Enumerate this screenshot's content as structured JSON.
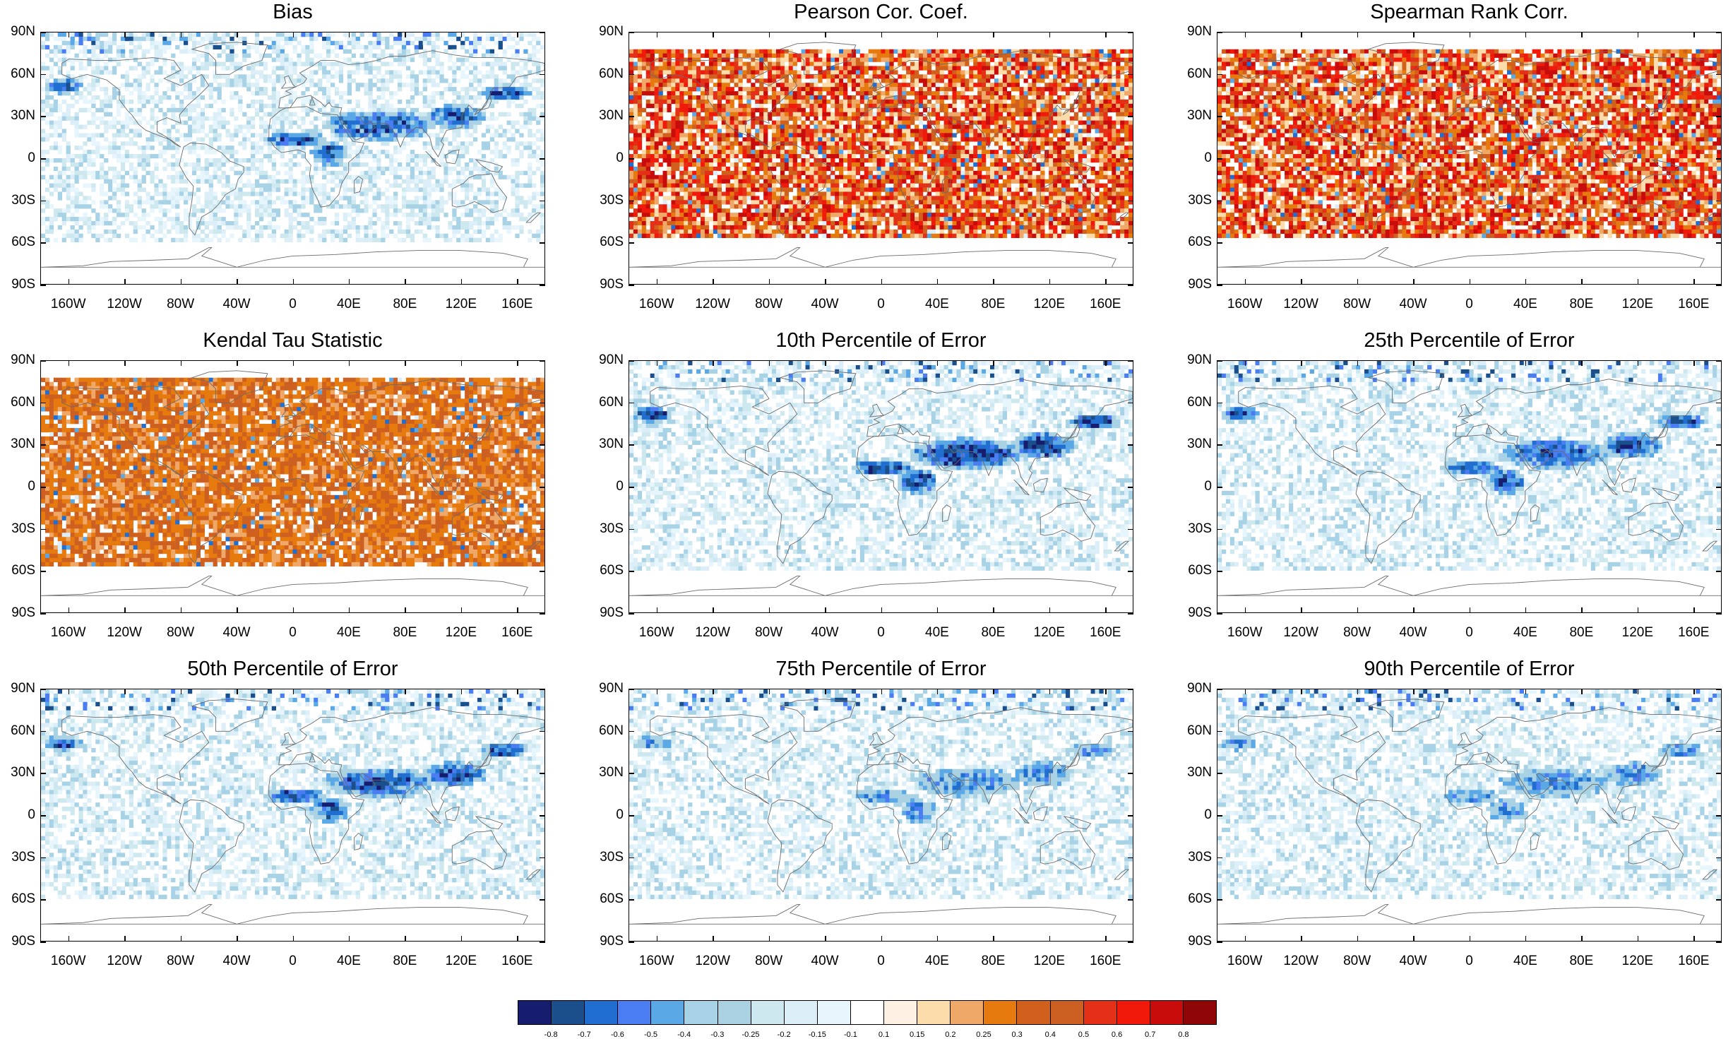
{
  "colors": {
    "frame": "#000000",
    "land_outline": "#6b6b6b",
    "light_blue": "#cfe8f3",
    "mid_blue": "#5aa0e0",
    "dark_blue": "#0e2a7a",
    "orange": "#e07020",
    "red": "#d92510",
    "dark_red": "#8b0000"
  },
  "axis": {
    "lat_labels": [
      "90N",
      "60N",
      "30N",
      "0",
      "30S",
      "60S",
      "90S"
    ],
    "lon_labels": [
      "160W",
      "120W",
      "80W",
      "40W",
      "0",
      "40E",
      "80E",
      "120E",
      "160E"
    ]
  },
  "panels": [
    {
      "title": "Bias",
      "pattern": "bias"
    },
    {
      "title": "Pearson Cor. Coef.",
      "pattern": "corr-red"
    },
    {
      "title": "Spearman Rank Corr.",
      "pattern": "corr-red"
    },
    {
      "title": "Kendal Tau Statistic",
      "pattern": "corr-orange"
    },
    {
      "title": "10th Percentile of Error",
      "pattern": "err-strong"
    },
    {
      "title": "25th Percentile of Error",
      "pattern": "err-medium"
    },
    {
      "title": "50th Percentile of Error",
      "pattern": "err-medium"
    },
    {
      "title": "75th Percentile of Error",
      "pattern": "err-light"
    },
    {
      "title": "90th Percentile of Error",
      "pattern": "err-light"
    }
  ],
  "colorbar": {
    "colors": [
      "#161c6e",
      "#1a4f8c",
      "#1f6ed0",
      "#4b7df2",
      "#5aa8e6",
      "#a8d2e6",
      "#abd2e2",
      "#cde8ee",
      "#dceef8",
      "#e6f6fc",
      "#ffffff",
      "#fdf1e4",
      "#fcdcab",
      "#f0a868",
      "#e67a0e",
      "#d0601c",
      "#cc5f22",
      "#e33016",
      "#f11a0a",
      "#c80c0c",
      "#8e0606"
    ],
    "labels": [
      "-0.8",
      "-0.7",
      "-0.6",
      "-0.5",
      "-0.4",
      "-0.3",
      "-0.25",
      "-0.2",
      "-0.15",
      "-0.1",
      "0.1",
      "0.15",
      "0.2",
      "0.25",
      "0.3",
      "0.4",
      "0.5",
      "0.6",
      "0.7",
      "0.8"
    ]
  }
}
